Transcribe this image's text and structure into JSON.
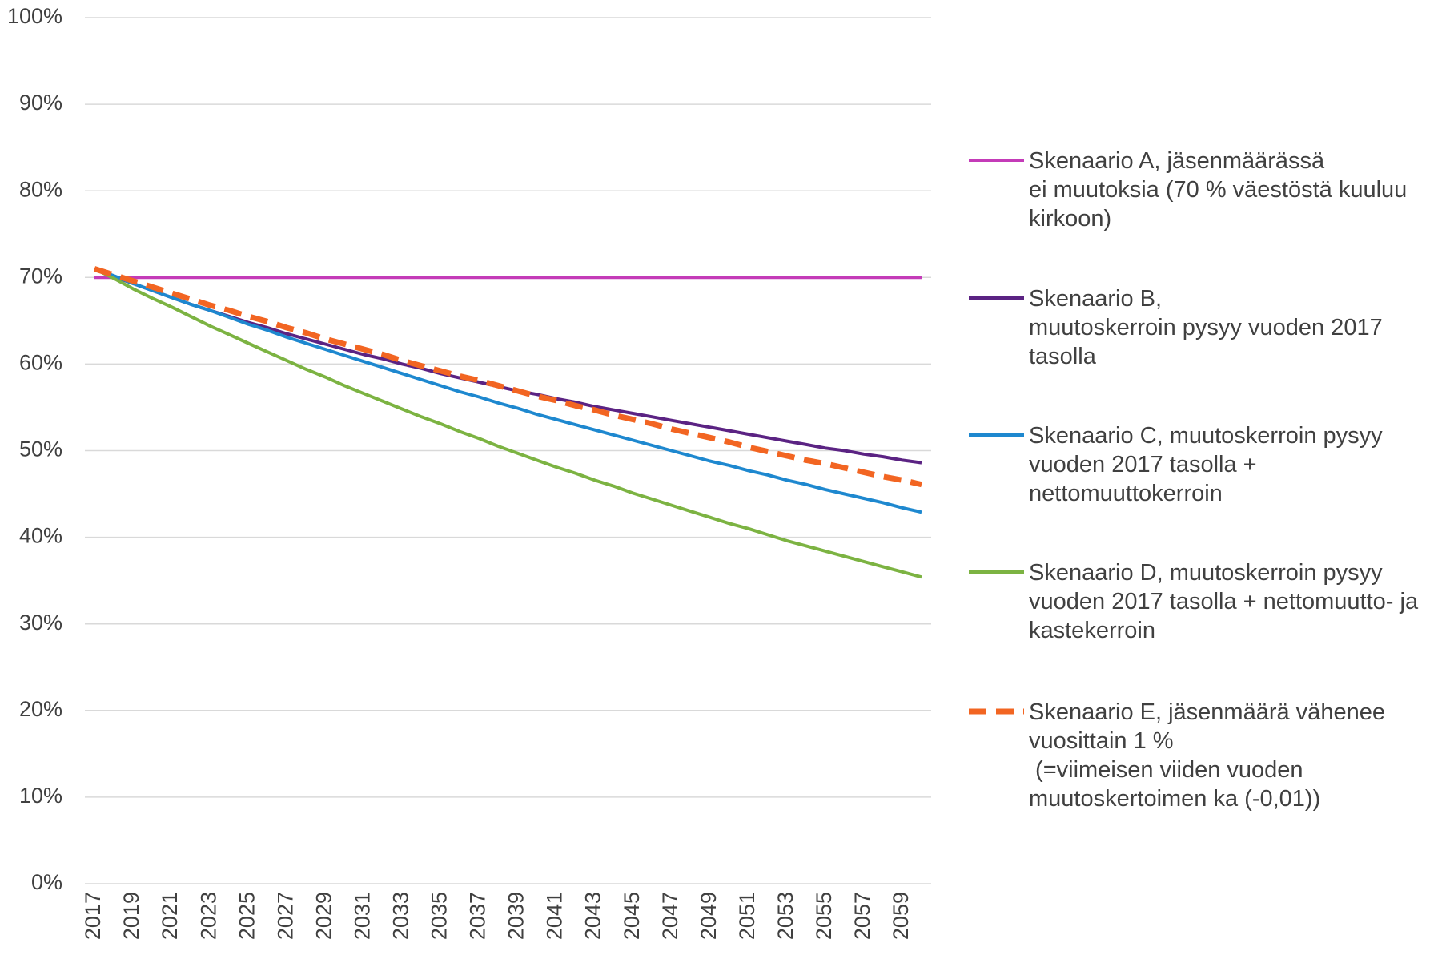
{
  "chart_data": {
    "type": "line",
    "categories": [
      "2017",
      null,
      "2019",
      null,
      "2021",
      null,
      "2023",
      null,
      "2025",
      null,
      "2027",
      null,
      "2029",
      null,
      "2031",
      null,
      "2033",
      null,
      "2035",
      null,
      "2037",
      null,
      "2039",
      null,
      "2041",
      null,
      "2043",
      null,
      "2045",
      null,
      "2047",
      null,
      "2049",
      null,
      "2051",
      null,
      "2053",
      null,
      "2055",
      null,
      "2057",
      null,
      "2059",
      null
    ],
    "ylim": [
      0,
      100
    ],
    "yticks": [
      {
        "value": 0,
        "label": "0%"
      },
      {
        "value": 10,
        "label": "10%"
      },
      {
        "value": 20,
        "label": "20%"
      },
      {
        "value": 30,
        "label": "30%"
      },
      {
        "value": 40,
        "label": "40%"
      },
      {
        "value": 50,
        "label": "50%"
      },
      {
        "value": 60,
        "label": "60%"
      },
      {
        "value": 70,
        "label": "70%"
      },
      {
        "value": 80,
        "label": "80%"
      },
      {
        "value": 90,
        "label": "90%"
      },
      {
        "value": 100,
        "label": "100%"
      }
    ],
    "grid": true,
    "legend": "right",
    "series": [
      {
        "name": "Skenaario A, jäsenmäärässä\nei muutoksia (70 % väestöstä kuuluu\nkirkoon)",
        "color": "#c43bb8",
        "dashed": false,
        "values": [
          70,
          70,
          70,
          70,
          70,
          70,
          70,
          70,
          70,
          70,
          70,
          70,
          70,
          70,
          70,
          70,
          70,
          70,
          70,
          70,
          70,
          70,
          70,
          70,
          70,
          70,
          70,
          70,
          70,
          70,
          70,
          70,
          70,
          70,
          70,
          70,
          70,
          70,
          70,
          70,
          70,
          70,
          70,
          70
        ]
      },
      {
        "name": "Skenaario B,\nmuutoskerroin pysyy vuoden 2017\ntasolla",
        "color": "#5b2383",
        "dashed": false,
        "values": [
          71,
          70.1,
          69.3,
          68.5,
          67.7,
          66.9,
          66.2,
          65.5,
          64.8,
          64.2,
          63.5,
          62.9,
          62.3,
          61.7,
          61.1,
          60.6,
          60.0,
          59.5,
          58.9,
          58.4,
          57.9,
          57.4,
          56.9,
          56.5,
          56.0,
          55.6,
          55.1,
          54.7,
          54.3,
          53.9,
          53.5,
          53.1,
          52.7,
          52.3,
          51.9,
          51.5,
          51.1,
          50.7,
          50.3,
          50.0,
          49.6,
          49.3,
          48.9,
          48.6
        ]
      },
      {
        "name": "Skenaario C, muutoskerroin pysyy\nvuoden 2017 tasolla +\nnettomuuttokerroin",
        "color": "#1e88cf",
        "dashed": false,
        "values": [
          71.0,
          70.2,
          69.3,
          68.5,
          67.7,
          66.9,
          66.2,
          65.4,
          64.6,
          63.9,
          63.1,
          62.4,
          61.7,
          61.0,
          60.3,
          59.6,
          58.9,
          58.2,
          57.5,
          56.8,
          56.2,
          55.5,
          54.9,
          54.2,
          53.6,
          53.0,
          52.4,
          51.8,
          51.2,
          50.6,
          50.0,
          49.4,
          48.8,
          48.3,
          47.7,
          47.2,
          46.6,
          46.1,
          45.5,
          45.0,
          44.5,
          44.0,
          43.4,
          42.9
        ]
      },
      {
        "name": "Skenaario D, muutoskerroin pysyy\nvuoden 2017 tasolla + nettomuutto- ja\nkastekerroin",
        "color": "#7cb342",
        "dashed": false,
        "values": [
          71.0,
          69.9,
          68.7,
          67.6,
          66.6,
          65.5,
          64.4,
          63.4,
          62.4,
          61.4,
          60.4,
          59.4,
          58.5,
          57.5,
          56.6,
          55.7,
          54.8,
          53.9,
          53.1,
          52.2,
          51.4,
          50.5,
          49.7,
          48.9,
          48.1,
          47.4,
          46.6,
          45.9,
          45.1,
          44.4,
          43.7,
          43.0,
          42.3,
          41.6,
          41.0,
          40.3,
          39.6,
          39.0,
          38.4,
          37.8,
          37.2,
          36.6,
          36.0,
          35.4
        ]
      },
      {
        "name": "Skenaario E, jäsenmäärä vähenee\nvuosittain 1 %\n (=viimeisen viiden vuoden\nmuutoskertoimen ka (-0,01))",
        "color": "#f26522",
        "dashed": true,
        "values": [
          71.0,
          70.3,
          69.6,
          68.9,
          68.2,
          67.5,
          66.8,
          66.2,
          65.5,
          64.9,
          64.2,
          63.6,
          62.9,
          62.3,
          61.7,
          61.1,
          60.4,
          59.8,
          59.2,
          58.6,
          58.1,
          57.5,
          56.9,
          56.3,
          55.8,
          55.2,
          54.7,
          54.1,
          53.6,
          53.1,
          52.5,
          52.0,
          51.5,
          51.0,
          50.4,
          49.9,
          49.4,
          48.9,
          48.5,
          48.0,
          47.5,
          47.0,
          46.6,
          46.1
        ]
      }
    ]
  }
}
